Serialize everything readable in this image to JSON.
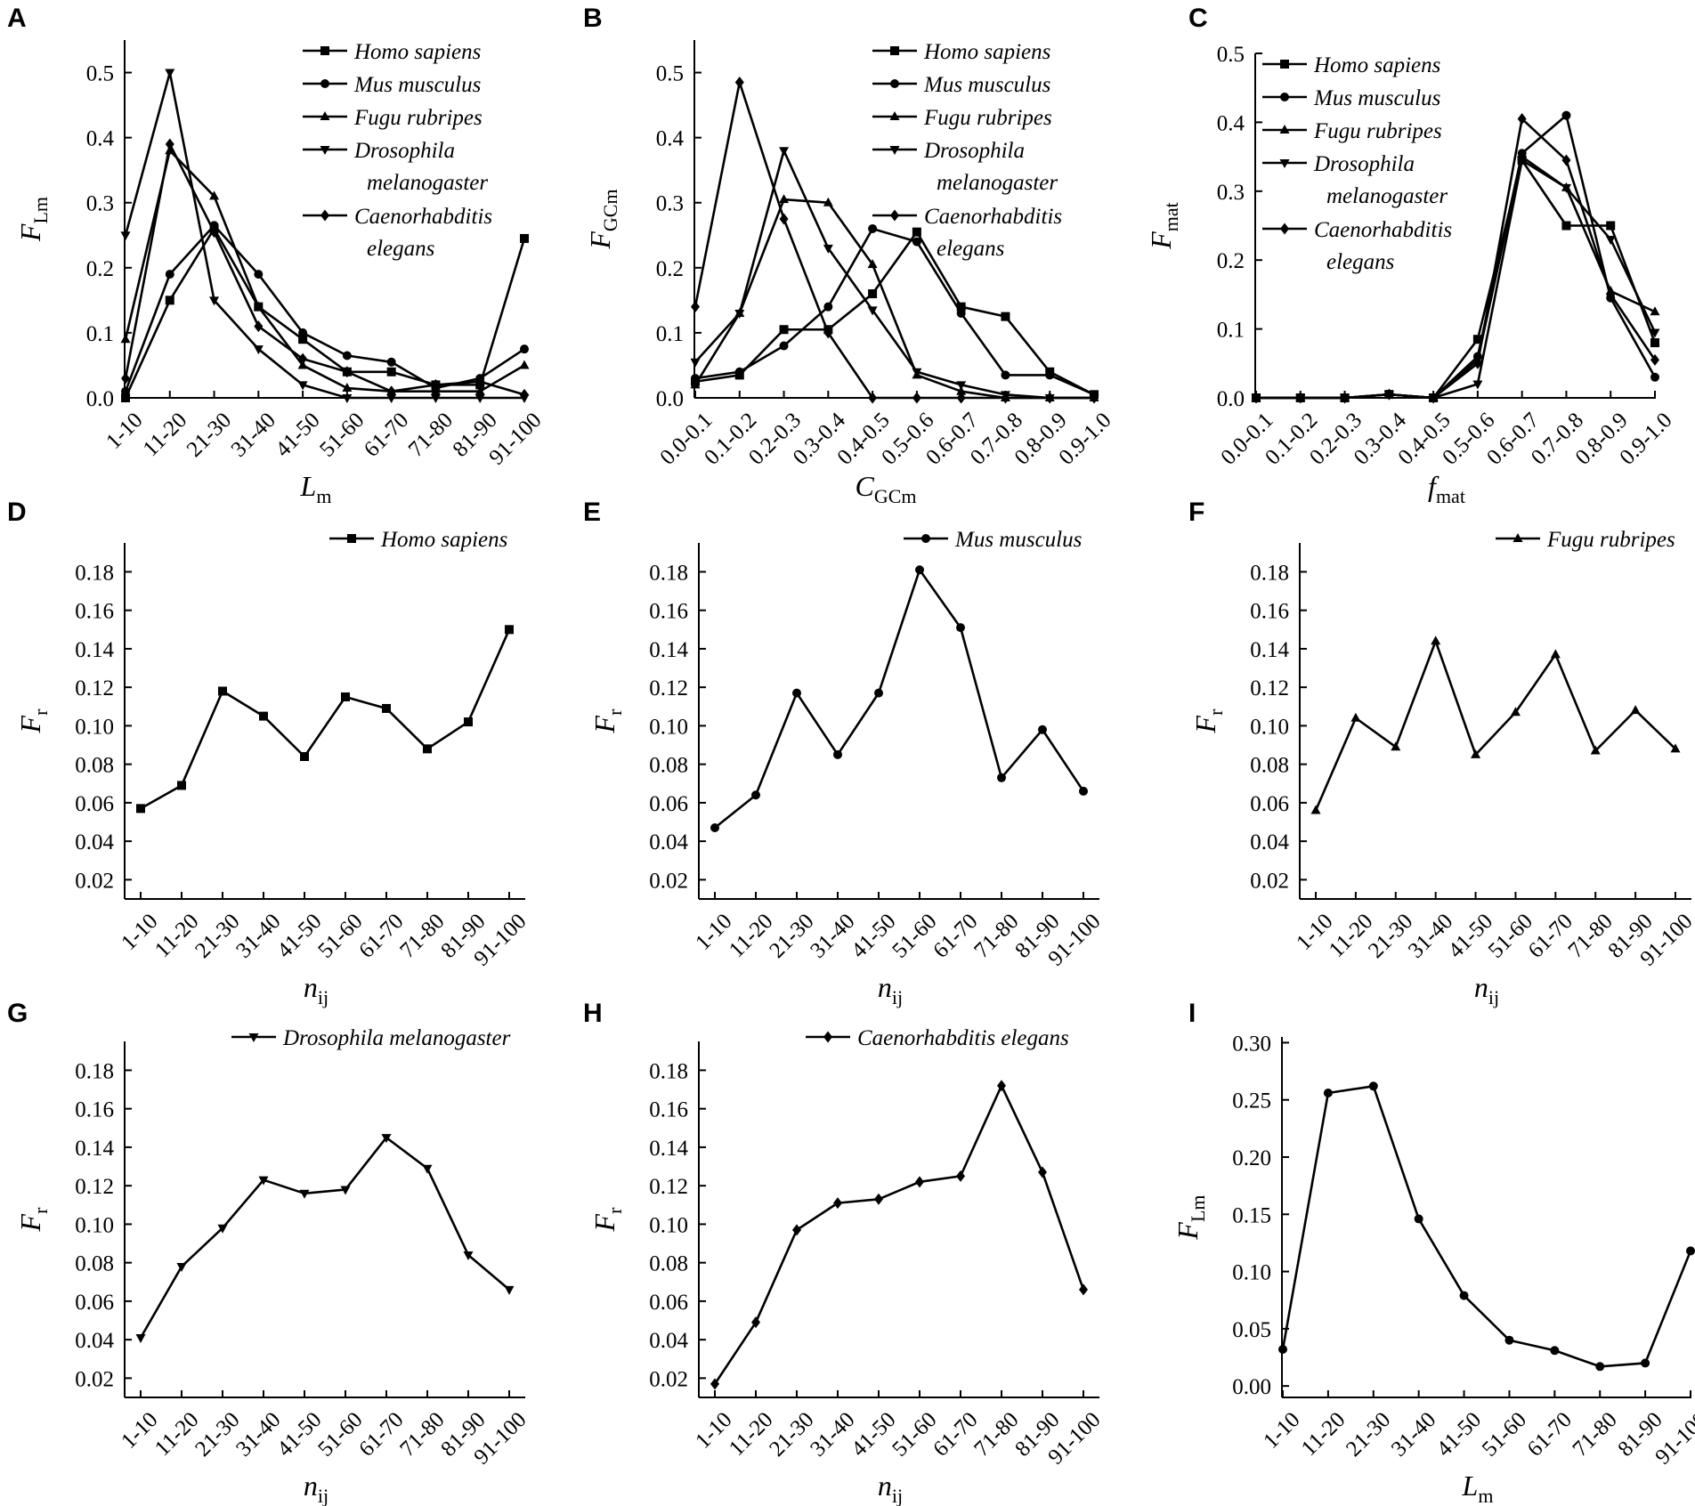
{
  "figure": {
    "colors": {
      "ink": "#000000",
      "background": "#ffffff"
    }
  },
  "chart_data": [
    {
      "panel": "A",
      "type": "line",
      "categories": [
        "1-10",
        "11-20",
        "21-30",
        "31-40",
        "41-50",
        "51-60",
        "61-70",
        "71-80",
        "81-90",
        "91-100"
      ],
      "ylabel": {
        "base": "F",
        "sub": "Lm"
      },
      "xlabel": {
        "base": "L",
        "sub": "m"
      },
      "ylim": [
        0,
        0.55
      ],
      "yticks": [
        "0.0",
        "0.1",
        "0.2",
        "0.3",
        "0.4",
        "0.5"
      ],
      "tick_values": [
        0.0,
        0.1,
        0.2,
        0.3,
        0.4,
        0.5
      ],
      "legend_position": "top-right",
      "series": [
        {
          "name": "Homo sapiens",
          "legend_lines": [
            "Homo sapiens"
          ],
          "marker": "square",
          "values": [
            0.0,
            0.15,
            0.26,
            0.14,
            0.09,
            0.04,
            0.04,
            0.02,
            0.02,
            0.245
          ]
        },
        {
          "name": "Mus musculus",
          "legend_lines": [
            "Mus musculus"
          ],
          "marker": "circle",
          "values": [
            0.01,
            0.19,
            0.265,
            0.19,
            0.1,
            0.065,
            0.055,
            0.015,
            0.03,
            0.075
          ]
        },
        {
          "name": "Fugu rubripes",
          "legend_lines": [
            "Fugu rubripes"
          ],
          "marker": "triangle-up",
          "values": [
            0.09,
            0.38,
            0.31,
            0.14,
            0.05,
            0.015,
            0.01,
            0.01,
            0.01,
            0.05
          ]
        },
        {
          "name": "Drosophila melanogaster",
          "legend_lines": [
            "Drosophila",
            "melanogaster"
          ],
          "marker": "triangle-down",
          "values": [
            0.25,
            0.5,
            0.15,
            0.075,
            0.02,
            0.0,
            0.0,
            0.0,
            0.0,
            0.0
          ]
        },
        {
          "name": "Caenorhabditis elegans",
          "legend_lines": [
            "Caenorhabditis",
            "elegans"
          ],
          "marker": "diamond",
          "values": [
            0.03,
            0.39,
            0.255,
            0.11,
            0.06,
            0.04,
            0.01,
            0.02,
            0.025,
            0.005
          ]
        }
      ]
    },
    {
      "panel": "B",
      "type": "line",
      "categories": [
        "0.0-0.1",
        "0.1-0.2",
        "0.2-0.3",
        "0.3-0.4",
        "0.4-0.5",
        "0.5-0.6",
        "0.6-0.7",
        "0.7-0.8",
        "0.8-0.9",
        "0.9-1.0"
      ],
      "ylabel": {
        "base": "F",
        "sub": "GCm"
      },
      "xlabel": {
        "base": "C",
        "sub": "GCm"
      },
      "ylim": [
        0,
        0.55
      ],
      "yticks": [
        "0.0",
        "0.1",
        "0.2",
        "0.3",
        "0.4",
        "0.5"
      ],
      "tick_values": [
        0.0,
        0.1,
        0.2,
        0.3,
        0.4,
        0.5
      ],
      "legend_position": "top-right",
      "series": [
        {
          "name": "Homo sapiens",
          "legend_lines": [
            "Homo sapiens"
          ],
          "marker": "square",
          "values": [
            0.025,
            0.035,
            0.105,
            0.105,
            0.16,
            0.255,
            0.14,
            0.125,
            0.04,
            0.005
          ]
        },
        {
          "name": "Mus musculus",
          "legend_lines": [
            "Mus musculus"
          ],
          "marker": "circle",
          "values": [
            0.03,
            0.04,
            0.08,
            0.14,
            0.26,
            0.24,
            0.13,
            0.035,
            0.035,
            0.005
          ]
        },
        {
          "name": "Fugu rubripes",
          "legend_lines": [
            "Fugu rubripes"
          ],
          "marker": "triangle-up",
          "values": [
            0.02,
            0.13,
            0.305,
            0.3,
            0.205,
            0.035,
            0.01,
            0.0,
            0.0,
            0.0
          ]
        },
        {
          "name": "Drosophila melanogaster",
          "legend_lines": [
            "Drosophila",
            "melanogaster"
          ],
          "marker": "triangle-down",
          "values": [
            0.055,
            0.13,
            0.38,
            0.23,
            0.135,
            0.04,
            0.02,
            0.005,
            0.0,
            0.0
          ]
        },
        {
          "name": "Caenorhabditis elegans",
          "legend_lines": [
            "Caenorhabditis",
            "elegans"
          ],
          "marker": "diamond",
          "values": [
            0.14,
            0.485,
            0.275,
            0.1,
            0.0,
            0.0,
            0.0,
            0.0,
            0.0,
            0.0
          ]
        }
      ]
    },
    {
      "panel": "C",
      "type": "line",
      "categories": [
        "0.0-0.1",
        "0.1-0.2",
        "0.2-0.3",
        "0.3-0.4",
        "0.4-0.5",
        "0.5-0.6",
        "0.6-0.7",
        "0.7-0.8",
        "0.8-0.9",
        "0.9-1.0"
      ],
      "ylabel": {
        "base": "F",
        "sub": "mat"
      },
      "xlabel": {
        "base": "f",
        "sub": "mat"
      },
      "ylim": [
        0,
        0.5
      ],
      "yticks": [
        "0.0",
        "0.1",
        "0.2",
        "0.3",
        "0.4",
        "0.5"
      ],
      "tick_values": [
        0.0,
        0.1,
        0.2,
        0.3,
        0.4,
        0.5
      ],
      "legend_position": "top-left",
      "series": [
        {
          "name": "Homo sapiens",
          "legend_lines": [
            "Homo sapiens"
          ],
          "marker": "square",
          "values": [
            0.0,
            0.0,
            0.0,
            0.005,
            0.0,
            0.085,
            0.345,
            0.25,
            0.25,
            0.08
          ]
        },
        {
          "name": "Mus musculus",
          "legend_lines": [
            "Mus musculus"
          ],
          "marker": "circle",
          "values": [
            0.0,
            0.0,
            0.0,
            0.005,
            0.0,
            0.06,
            0.355,
            0.41,
            0.145,
            0.03
          ]
        },
        {
          "name": "Fugu rubripes",
          "legend_lines": [
            "Fugu rubripes"
          ],
          "marker": "triangle-up",
          "values": [
            0.0,
            0.0,
            0.0,
            0.005,
            0.0,
            0.055,
            0.35,
            0.305,
            0.155,
            0.125
          ]
        },
        {
          "name": "Drosophila melanogaster",
          "legend_lines": [
            "Drosophila",
            "melanogaster"
          ],
          "marker": "triangle-down",
          "values": [
            0.0,
            0.0,
            0.0,
            0.005,
            0.0,
            0.02,
            0.345,
            0.305,
            0.23,
            0.095
          ]
        },
        {
          "name": "Caenorhabditis elegans",
          "legend_lines": [
            "Caenorhabditis",
            "elegans"
          ],
          "marker": "diamond",
          "values": [
            0.0,
            0.0,
            0.0,
            0.005,
            0.0,
            0.05,
            0.405,
            0.345,
            0.15,
            0.055
          ]
        }
      ]
    },
    {
      "panel": "D",
      "type": "line",
      "categories": [
        "1-10",
        "11-20",
        "21-30",
        "31-40",
        "41-50",
        "51-60",
        "61-70",
        "71-80",
        "81-90",
        "91-100"
      ],
      "ylabel": {
        "base": "F",
        "sub": "r"
      },
      "xlabel": {
        "base": "n",
        "sub": "ij"
      },
      "ylim": [
        0.01,
        0.195
      ],
      "yticks": [
        "0.02",
        "0.04",
        "0.06",
        "0.08",
        "0.10",
        "0.12",
        "0.14",
        "0.16",
        "0.18"
      ],
      "tick_values": [
        0.02,
        0.04,
        0.06,
        0.08,
        0.1,
        0.12,
        0.14,
        0.16,
        0.18
      ],
      "legend_position": "top-right",
      "series": [
        {
          "name": "Homo sapiens",
          "legend_lines": [
            "Homo sapiens"
          ],
          "marker": "square",
          "values": [
            0.057,
            0.069,
            0.118,
            0.105,
            0.084,
            0.115,
            0.109,
            0.088,
            0.102,
            0.15
          ]
        }
      ]
    },
    {
      "panel": "E",
      "type": "line",
      "categories": [
        "1-10",
        "11-20",
        "21-30",
        "31-40",
        "41-50",
        "51-60",
        "61-70",
        "71-80",
        "81-90",
        "91-100"
      ],
      "ylabel": {
        "base": "F",
        "sub": "r"
      },
      "xlabel": {
        "base": "n",
        "sub": "ij"
      },
      "ylim": [
        0.01,
        0.195
      ],
      "yticks": [
        "0.02",
        "0.04",
        "0.06",
        "0.08",
        "0.10",
        "0.12",
        "0.14",
        "0.16",
        "0.18"
      ],
      "tick_values": [
        0.02,
        0.04,
        0.06,
        0.08,
        0.1,
        0.12,
        0.14,
        0.16,
        0.18
      ],
      "legend_position": "top-right",
      "series": [
        {
          "name": "Mus musculus",
          "legend_lines": [
            "Mus musculus"
          ],
          "marker": "circle",
          "values": [
            0.047,
            0.064,
            0.117,
            0.085,
            0.117,
            0.181,
            0.151,
            0.073,
            0.098,
            0.066
          ]
        }
      ]
    },
    {
      "panel": "F",
      "type": "line",
      "categories": [
        "1-10",
        "11-20",
        "21-30",
        "31-40",
        "41-50",
        "51-60",
        "61-70",
        "71-80",
        "81-90",
        "91-100"
      ],
      "ylabel": {
        "base": "F",
        "sub": "r"
      },
      "xlabel": {
        "base": "n",
        "sub": "ij"
      },
      "ylim": [
        0.01,
        0.195
      ],
      "yticks": [
        "0.02",
        "0.04",
        "0.06",
        "0.08",
        "0.10",
        "0.12",
        "0.14",
        "0.16",
        "0.18"
      ],
      "tick_values": [
        0.02,
        0.04,
        0.06,
        0.08,
        0.1,
        0.12,
        0.14,
        0.16,
        0.18
      ],
      "legend_position": "top-right",
      "series": [
        {
          "name": "Fugu rubripes",
          "legend_lines": [
            "Fugu rubripes"
          ],
          "marker": "triangle-up",
          "values": [
            0.056,
            0.104,
            0.089,
            0.144,
            0.085,
            0.107,
            0.137,
            0.087,
            0.108,
            0.088
          ]
        }
      ]
    },
    {
      "panel": "G",
      "type": "line",
      "categories": [
        "1-10",
        "11-20",
        "21-30",
        "31-40",
        "41-50",
        "51-60",
        "61-70",
        "71-80",
        "81-90",
        "91-100"
      ],
      "ylabel": {
        "base": "F",
        "sub": "r"
      },
      "xlabel": {
        "base": "n",
        "sub": "ij"
      },
      "ylim": [
        0.01,
        0.195
      ],
      "yticks": [
        "0.02",
        "0.04",
        "0.06",
        "0.08",
        "0.10",
        "0.12",
        "0.14",
        "0.16",
        "0.18"
      ],
      "tick_values": [
        0.02,
        0.04,
        0.06,
        0.08,
        0.1,
        0.12,
        0.14,
        0.16,
        0.18
      ],
      "legend_position": "top-right",
      "series": [
        {
          "name": "Drosophila melanogaster",
          "legend_lines": [
            "Drosophila melanogaster"
          ],
          "marker": "triangle-down",
          "values": [
            0.041,
            0.078,
            0.098,
            0.123,
            0.116,
            0.118,
            0.145,
            0.129,
            0.084,
            0.066
          ]
        }
      ]
    },
    {
      "panel": "H",
      "type": "line",
      "categories": [
        "1-10",
        "11-20",
        "21-30",
        "31-40",
        "41-50",
        "51-60",
        "61-70",
        "71-80",
        "81-90",
        "91-100"
      ],
      "ylabel": {
        "base": "F",
        "sub": "r"
      },
      "xlabel": {
        "base": "n",
        "sub": "ij"
      },
      "ylim": [
        0.01,
        0.195
      ],
      "yticks": [
        "0.02",
        "0.04",
        "0.06",
        "0.08",
        "0.10",
        "0.12",
        "0.14",
        "0.16",
        "0.18"
      ],
      "tick_values": [
        0.02,
        0.04,
        0.06,
        0.08,
        0.1,
        0.12,
        0.14,
        0.16,
        0.18
      ],
      "legend_position": "top-right",
      "series": [
        {
          "name": "Caenorhabditis elegans",
          "legend_lines": [
            "Caenorhabditis elegans"
          ],
          "marker": "diamond",
          "values": [
            0.017,
            0.049,
            0.097,
            0.111,
            0.113,
            0.122,
            0.125,
            0.172,
            0.127,
            0.066
          ]
        }
      ]
    },
    {
      "panel": "I",
      "type": "line",
      "categories": [
        "1-10",
        "11-20",
        "21-30",
        "31-40",
        "41-50",
        "51-60",
        "61-70",
        "71-80",
        "81-90",
        "91-100"
      ],
      "ylabel": {
        "base": "F",
        "sub": "Lm"
      },
      "xlabel": {
        "base": "L",
        "sub": "m"
      },
      "ylim": [
        -0.01,
        0.305
      ],
      "yticks": [
        "0.00",
        "0.05",
        "0.10",
        "0.15",
        "0.20",
        "0.25",
        "0.30"
      ],
      "tick_values": [
        0.0,
        0.05,
        0.1,
        0.15,
        0.2,
        0.25,
        0.3
      ],
      "legend_position": "none",
      "series": [
        {
          "name": "",
          "legend_lines": [],
          "marker": "circle",
          "values": [
            0.032,
            0.256,
            0.262,
            0.146,
            0.079,
            0.04,
            0.031,
            0.017,
            0.02,
            0.118
          ]
        }
      ]
    }
  ]
}
